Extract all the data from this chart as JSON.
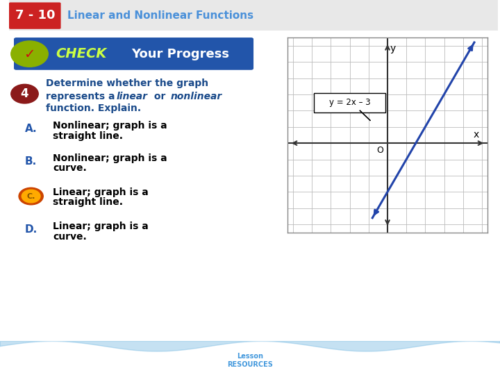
{
  "title_num": "7 - 10",
  "title_text": "Linear and Nonlinear Functions",
  "header_text": "Your Progress",
  "answers": [
    {
      "label": "A.",
      "line1": "Nonlinear; graph is a",
      "line2": "straight line."
    },
    {
      "label": "B.",
      "line1": "Nonlinear; graph is a",
      "line2": "curve."
    },
    {
      "label": "C.",
      "line1": "Linear; graph is a",
      "line2": "straight line.",
      "selected": true
    },
    {
      "label": "D.",
      "line1": "Linear; graph is a",
      "line2": "curve."
    }
  ],
  "graph_equation": "y = 2x – 3",
  "white_bg": "#ffffff",
  "light_gray_bg": "#f4f4f4",
  "title_bar_bg": "#f0f0f0",
  "dark_blue_header": "#2c5f8a",
  "title_box_red": "#cc2222",
  "title_box_bg": "#cc2222",
  "title_text_color": "#4a90d9",
  "check_banner_blue": "#2255aa",
  "question_blue": "#1a4a8a",
  "answer_blue": "#2255aa",
  "black": "#000000",
  "red_left_border": "#cc2222",
  "grid_color": "#bbbbbb",
  "axis_color": "#333333",
  "line_blue": "#2244aa",
  "selected_outer": "#cc4400",
  "selected_inner": "#ffaa00",
  "selected_text": "#885500",
  "bottom_bar_blue": "#1a4a7a",
  "bottom_text_blue": "#4499dd"
}
